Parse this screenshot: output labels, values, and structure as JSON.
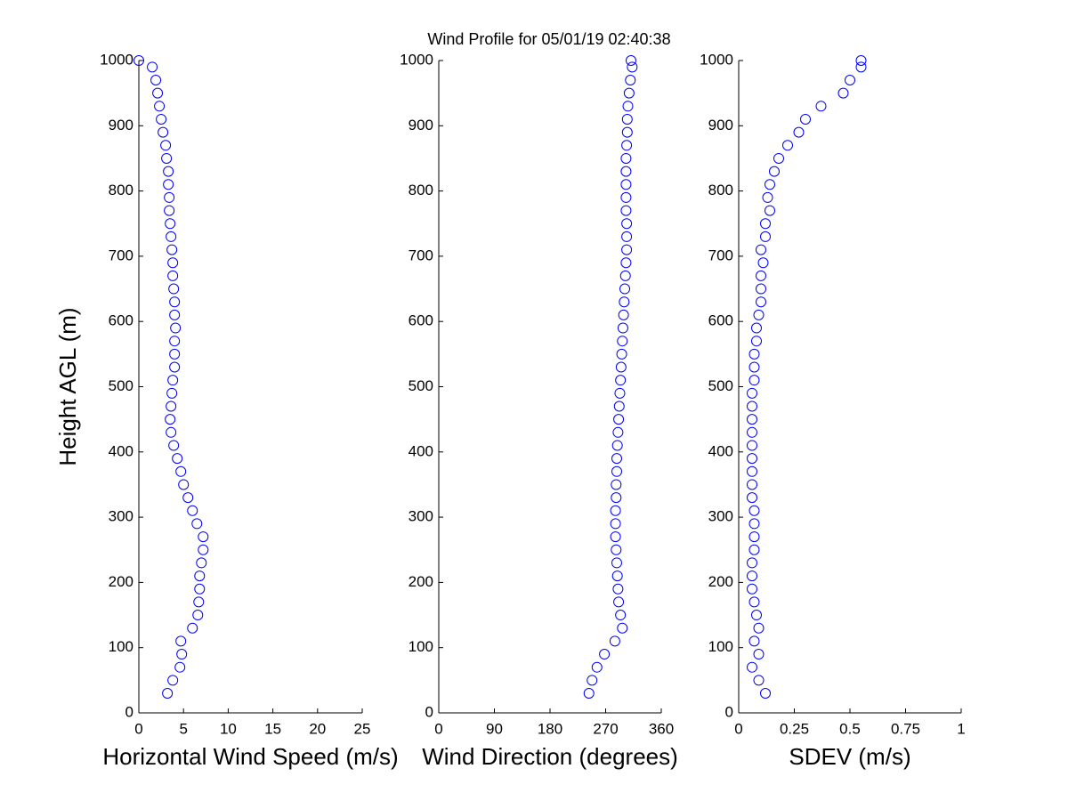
{
  "chart_data": [
    {
      "type": "scatter",
      "x_label": "Horizontal Wind Speed (m/s)",
      "y_label": "Height AGL (m)",
      "color": "#0000ff",
      "xlim": [
        0,
        25
      ],
      "xticks": [
        0,
        5,
        10,
        15,
        20,
        25
      ],
      "ylim": [
        0,
        1000
      ],
      "yticks": [
        0,
        100,
        200,
        300,
        400,
        500,
        600,
        700,
        800,
        900,
        1000
      ],
      "x": [
        3.2,
        3.8,
        4.6,
        4.8,
        4.7,
        6.0,
        6.6,
        6.7,
        6.8,
        6.8,
        7.0,
        7.2,
        7.2,
        6.5,
        6.0,
        5.5,
        5.0,
        4.7,
        4.3,
        3.9,
        3.6,
        3.5,
        3.6,
        3.7,
        3.8,
        4.0,
        4.0,
        4.0,
        4.1,
        4.0,
        4.0,
        3.9,
        3.8,
        3.8,
        3.7,
        3.6,
        3.5,
        3.4,
        3.4,
        3.3,
        3.3,
        3.1,
        3.0,
        2.7,
        2.5,
        2.3,
        2.1,
        1.9,
        1.5,
        0
      ],
      "y": [
        30,
        50,
        70,
        90,
        110,
        130,
        150,
        170,
        190,
        210,
        230,
        250,
        270,
        290,
        310,
        330,
        350,
        370,
        390,
        410,
        430,
        450,
        470,
        490,
        510,
        530,
        550,
        570,
        590,
        610,
        630,
        650,
        670,
        690,
        710,
        730,
        750,
        770,
        790,
        810,
        830,
        850,
        870,
        890,
        910,
        930,
        950,
        970,
        990,
        1000
      ]
    },
    {
      "type": "scatter",
      "title": "Wind Profile for  05/01/19 02:40:38",
      "x_label": "Wind Direction (degrees)",
      "color": "#0000ff",
      "xlim": [
        0,
        360
      ],
      "xticks": [
        0,
        90,
        180,
        270,
        360
      ],
      "ylim": [
        0,
        1000
      ],
      "yticks": [
        0,
        100,
        200,
        300,
        400,
        500,
        600,
        700,
        800,
        900,
        1000
      ],
      "x": [
        243,
        248,
        256,
        268,
        285,
        297,
        294,
        291,
        290,
        289,
        288,
        287,
        286,
        286,
        286,
        287,
        287,
        288,
        288,
        289,
        290,
        291,
        292,
        293,
        294,
        295,
        296,
        297,
        298,
        299,
        300,
        301,
        302,
        303,
        304,
        304,
        304,
        303,
        303,
        303,
        303,
        303,
        304,
        305,
        305,
        306,
        308,
        310,
        313,
        311
      ],
      "y": [
        30,
        50,
        70,
        90,
        110,
        130,
        150,
        170,
        190,
        210,
        230,
        250,
        270,
        290,
        310,
        330,
        350,
        370,
        390,
        410,
        430,
        450,
        470,
        490,
        510,
        530,
        550,
        570,
        590,
        610,
        630,
        650,
        670,
        690,
        710,
        730,
        750,
        770,
        790,
        810,
        830,
        850,
        870,
        890,
        910,
        930,
        950,
        970,
        990,
        1000
      ]
    },
    {
      "type": "scatter",
      "x_label": "SDEV  (m/s)",
      "color": "#0000ff",
      "xlim": [
        0,
        1
      ],
      "xticks": [
        0,
        0.25,
        0.5,
        0.75,
        1
      ],
      "ylim": [
        0,
        1000
      ],
      "yticks": [
        0,
        100,
        200,
        300,
        400,
        500,
        600,
        700,
        800,
        900,
        1000
      ],
      "x": [
        0.12,
        0.09,
        0.06,
        0.09,
        0.07,
        0.09,
        0.08,
        0.07,
        0.06,
        0.06,
        0.06,
        0.07,
        0.07,
        0.07,
        0.07,
        0.06,
        0.06,
        0.06,
        0.06,
        0.06,
        0.06,
        0.06,
        0.06,
        0.06,
        0.07,
        0.07,
        0.07,
        0.08,
        0.08,
        0.09,
        0.1,
        0.1,
        0.1,
        0.11,
        0.1,
        0.12,
        0.12,
        0.14,
        0.13,
        0.14,
        0.16,
        0.18,
        0.22,
        0.27,
        0.3,
        0.37,
        0.47,
        0.5,
        0.55,
        0.55
      ],
      "y": [
        30,
        50,
        70,
        90,
        110,
        130,
        150,
        170,
        190,
        210,
        230,
        250,
        270,
        290,
        310,
        330,
        350,
        370,
        390,
        410,
        430,
        450,
        470,
        490,
        510,
        530,
        550,
        570,
        590,
        610,
        630,
        650,
        670,
        690,
        710,
        730,
        750,
        770,
        790,
        810,
        830,
        850,
        870,
        890,
        910,
        930,
        950,
        970,
        990,
        1000
      ]
    }
  ]
}
